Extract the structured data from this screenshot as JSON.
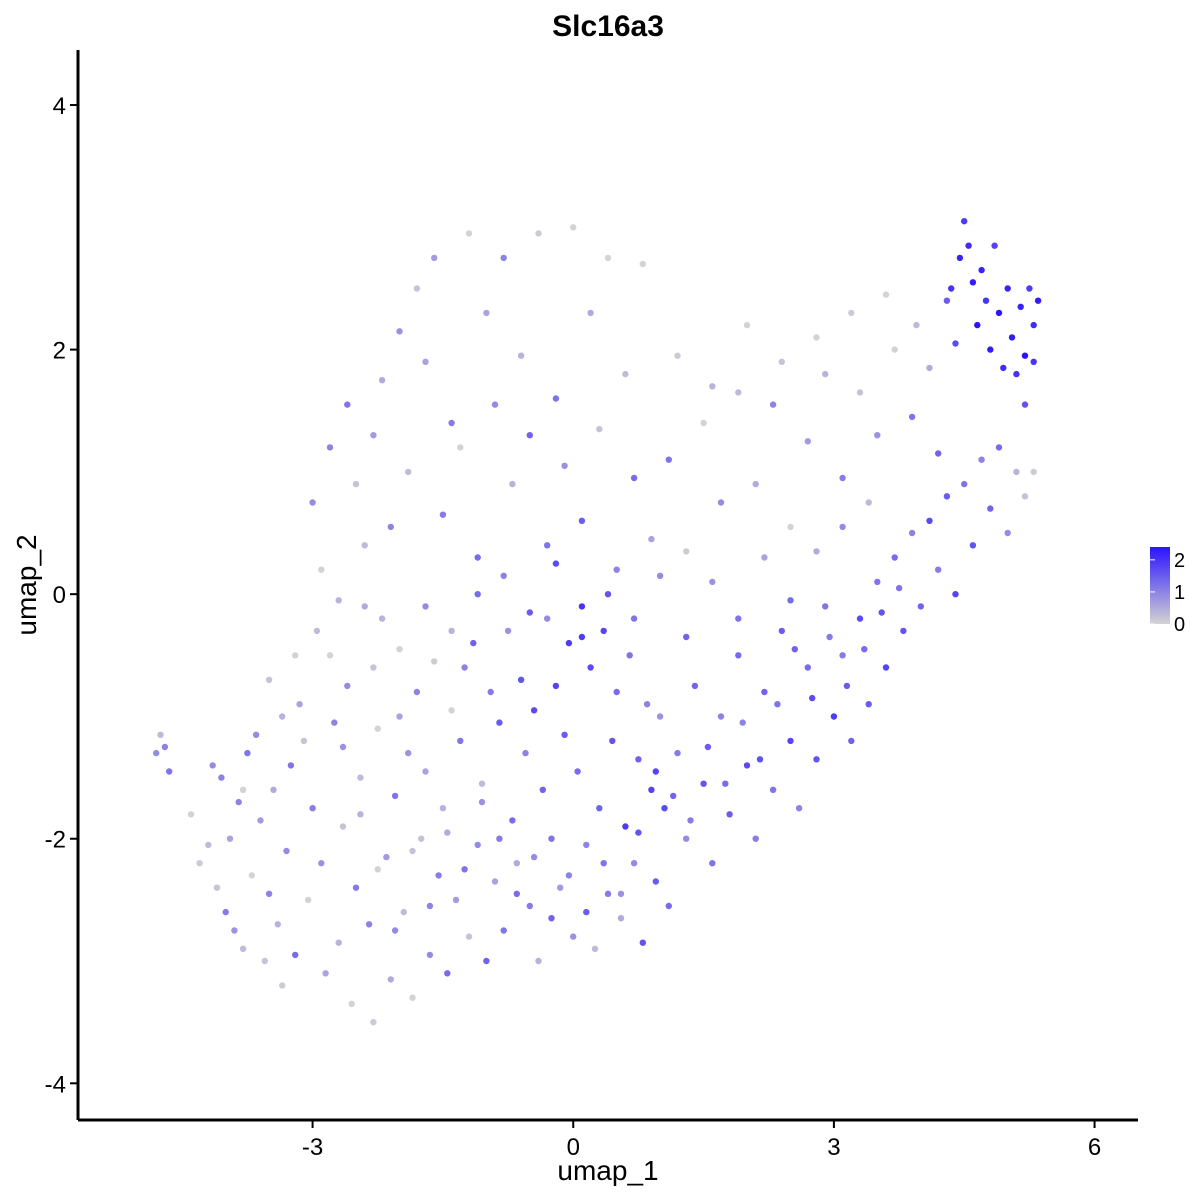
{
  "chart_data": {
    "type": "scatter",
    "title": "Slc16a3",
    "xlabel": "umap_1",
    "ylabel": "umap_2",
    "xlim": [
      -5.7,
      6.5
    ],
    "ylim": [
      -4.3,
      4.45
    ],
    "xticks": [
      -3,
      0,
      3,
      6
    ],
    "yticks": [
      -4,
      -2,
      0,
      2,
      4
    ],
    "xtick_labels": [
      "-3",
      "0",
      "3",
      "6"
    ],
    "ytick_labels": [
      "-4",
      "-2",
      "0",
      "2",
      "4"
    ],
    "grid": false,
    "legend": {
      "placement": "right",
      "type": "colorbar",
      "ticks": [
        0,
        1,
        2
      ],
      "tick_labels": [
        "0",
        "1",
        "2"
      ],
      "range": [
        0,
        2.4
      ]
    },
    "color_scale": {
      "low": "#d3d3d3",
      "high": "#2a14ff"
    },
    "point_color": "expression",
    "points": [
      [
        -4.8,
        -1.3,
        0.9
      ],
      [
        -4.7,
        -1.25,
        1.0
      ],
      [
        -4.75,
        -1.15,
        0.3
      ],
      [
        -4.65,
        -1.45,
        1.2
      ],
      [
        -4.4,
        -1.8,
        0.0
      ],
      [
        -4.3,
        -2.2,
        0.1
      ],
      [
        -4.2,
        -2.05,
        0.3
      ],
      [
        -4.15,
        -1.4,
        0.9
      ],
      [
        -4.05,
        -1.5,
        1.0
      ],
      [
        -4.0,
        -2.6,
        1.1
      ],
      [
        -3.9,
        -2.75,
        0.8
      ],
      [
        -3.85,
        -1.7,
        1.0
      ],
      [
        -3.8,
        -2.9,
        0.3
      ],
      [
        -3.75,
        -1.3,
        1.2
      ],
      [
        -3.7,
        -2.3,
        0.0
      ],
      [
        -3.6,
        -1.85,
        0.7
      ],
      [
        -3.55,
        -3.0,
        0.2
      ],
      [
        -3.5,
        -2.45,
        1.0
      ],
      [
        -3.45,
        -1.6,
        0.5
      ],
      [
        -3.4,
        -2.7,
        0.4
      ],
      [
        -3.35,
        -3.2,
        0.1
      ],
      [
        -3.3,
        -2.1,
        0.9
      ],
      [
        -3.25,
        -1.4,
        1.2
      ],
      [
        -3.2,
        -2.95,
        1.3
      ],
      [
        -3.15,
        -0.9,
        0.6
      ],
      [
        -3.1,
        -1.2,
        0.2
      ],
      [
        -3.05,
        -2.5,
        0.0
      ],
      [
        -3.0,
        -1.75,
        1.1
      ],
      [
        -2.95,
        -0.3,
        0.3
      ],
      [
        -2.9,
        -2.2,
        0.8
      ],
      [
        -2.85,
        -3.1,
        0.6
      ],
      [
        -2.8,
        -0.5,
        0.0
      ],
      [
        -2.75,
        -1.05,
        1.0
      ],
      [
        -2.7,
        -2.85,
        0.4
      ],
      [
        -2.65,
        -1.9,
        0.2
      ],
      [
        -2.6,
        -0.75,
        0.9
      ],
      [
        -2.55,
        -3.35,
        0.0
      ],
      [
        -2.5,
        -2.4,
        1.1
      ],
      [
        -2.45,
        -1.5,
        0.3
      ],
      [
        -2.4,
        -0.1,
        0.5
      ],
      [
        -2.35,
        -2.7,
        1.0
      ],
      [
        -2.3,
        -3.5,
        0.1
      ],
      [
        -2.25,
        -1.1,
        0.0
      ],
      [
        -2.2,
        -0.2,
        0.4
      ],
      [
        -2.15,
        -2.15,
        0.7
      ],
      [
        -2.1,
        -3.15,
        0.5
      ],
      [
        -2.05,
        -1.65,
        1.2
      ],
      [
        -2.0,
        -0.45,
        0.0
      ],
      [
        -1.95,
        -2.6,
        0.3
      ],
      [
        -1.9,
        -1.3,
        0.8
      ],
      [
        -1.85,
        -3.3,
        0.0
      ],
      [
        -1.8,
        -0.8,
        1.0
      ],
      [
        -1.75,
        -2.0,
        0.2
      ],
      [
        -1.7,
        -1.45,
        0.6
      ],
      [
        -1.65,
        -2.95,
        0.9
      ],
      [
        -1.6,
        -0.55,
        0.1
      ],
      [
        -1.55,
        -2.3,
        1.1
      ],
      [
        -1.5,
        -1.75,
        0.4
      ],
      [
        -1.45,
        -3.1,
        1.3
      ],
      [
        -1.4,
        -0.95,
        0.0
      ],
      [
        -1.35,
        -2.5,
        0.7
      ],
      [
        -1.3,
        -1.2,
        1.2
      ],
      [
        -1.25,
        -0.6,
        1.0
      ],
      [
        -1.2,
        -2.8,
        0.2
      ],
      [
        -1.15,
        -0.4,
        1.4
      ],
      [
        -1.1,
        -2.05,
        0.9
      ],
      [
        -1.05,
        -1.55,
        0.3
      ],
      [
        -1.0,
        -3.0,
        1.4
      ],
      [
        -0.95,
        -0.8,
        1.1
      ],
      [
        -0.9,
        -2.35,
        0.6
      ],
      [
        -0.85,
        -1.05,
        1.5
      ],
      [
        -0.8,
        -2.75,
        1.2
      ],
      [
        -0.75,
        -0.3,
        0.8
      ],
      [
        -0.7,
        -1.85,
        1.3
      ],
      [
        -0.65,
        -2.2,
        0.5
      ],
      [
        -0.6,
        -0.7,
        1.6
      ],
      [
        -0.55,
        -1.3,
        1.0
      ],
      [
        -0.5,
        -2.55,
        1.1
      ],
      [
        -0.45,
        -0.95,
        1.7
      ],
      [
        -0.4,
        -3.0,
        0.4
      ],
      [
        -0.35,
        -1.6,
        1.4
      ],
      [
        -0.3,
        -0.2,
        0.9
      ],
      [
        -0.25,
        -2.0,
        1.2
      ],
      [
        -0.2,
        -0.75,
        1.8
      ],
      [
        -0.15,
        -2.4,
        0.7
      ],
      [
        -0.1,
        -1.15,
        1.5
      ],
      [
        -0.05,
        -0.4,
        1.9
      ],
      [
        0.0,
        -2.8,
        0.8
      ],
      [
        0.05,
        -1.45,
        1.3
      ],
      [
        0.1,
        -0.1,
        2.0
      ],
      [
        0.15,
        -2.05,
        1.0
      ],
      [
        0.2,
        -0.6,
        1.7
      ],
      [
        0.25,
        -2.9,
        0.3
      ],
      [
        0.3,
        -1.75,
        1.4
      ],
      [
        0.35,
        -0.3,
        1.8
      ],
      [
        0.4,
        -2.45,
        1.1
      ],
      [
        0.45,
        -1.2,
        1.6
      ],
      [
        0.5,
        -0.8,
        1.3
      ],
      [
        0.55,
        -2.65,
        0.5
      ],
      [
        0.6,
        -1.9,
        1.9
      ],
      [
        0.65,
        -0.5,
        1.2
      ],
      [
        0.7,
        -2.2,
        0.9
      ],
      [
        0.75,
        -1.35,
        1.4
      ],
      [
        0.8,
        -2.85,
        1.6
      ],
      [
        0.85,
        -0.9,
        1.0
      ],
      [
        0.9,
        -1.6,
        1.8
      ],
      [
        0.95,
        -2.35,
        1.5
      ],
      [
        1.0,
        -1.0,
        0.8
      ],
      [
        1.05,
        -1.75,
        1.7
      ],
      [
        1.1,
        -2.55,
        1.3
      ],
      [
        1.2,
        -1.3,
        1.1
      ],
      [
        1.3,
        -2.0,
        0.9
      ],
      [
        1.4,
        -0.75,
        1.4
      ],
      [
        1.5,
        -1.55,
        1.6
      ],
      [
        1.6,
        -2.2,
        1.2
      ],
      [
        1.7,
        -1.0,
        1.0
      ],
      [
        1.8,
        -1.8,
        1.5
      ],
      [
        1.9,
        -0.5,
        1.3
      ],
      [
        2.0,
        -1.4,
        1.7
      ],
      [
        2.1,
        -2.0,
        1.1
      ],
      [
        2.2,
        -0.8,
        1.4
      ],
      [
        2.3,
        -1.6,
        1.2
      ],
      [
        2.4,
        -0.3,
        1.5
      ],
      [
        2.5,
        -1.2,
        1.8
      ],
      [
        2.6,
        -1.75,
        1.0
      ],
      [
        2.7,
        -0.6,
        1.3
      ],
      [
        2.8,
        -1.35,
        1.6
      ],
      [
        2.9,
        -0.1,
        1.2
      ],
      [
        3.0,
        -1.0,
        1.9
      ],
      [
        3.1,
        -0.5,
        1.1
      ],
      [
        3.2,
        -1.2,
        1.4
      ],
      [
        3.3,
        -0.2,
        1.7
      ],
      [
        3.4,
        -0.9,
        1.5
      ],
      [
        3.5,
        0.1,
        1.2
      ],
      [
        3.6,
        -0.6,
        1.8
      ],
      [
        3.7,
        0.3,
        1.3
      ],
      [
        3.8,
        -0.3,
        1.6
      ],
      [
        3.9,
        0.5,
        1.0
      ],
      [
        4.0,
        -0.1,
        1.4
      ],
      [
        4.1,
        0.6,
        1.7
      ],
      [
        4.2,
        0.2,
        1.1
      ],
      [
        4.3,
        0.8,
        1.5
      ],
      [
        4.4,
        0.0,
        1.8
      ],
      [
        4.5,
        0.9,
        1.2
      ],
      [
        4.6,
        0.4,
        1.6
      ],
      [
        4.7,
        1.1,
        1.0
      ],
      [
        4.8,
        0.7,
        1.4
      ],
      [
        4.9,
        1.2,
        1.3
      ],
      [
        5.0,
        0.5,
        0.9
      ],
      [
        5.1,
        1.0,
        0.4
      ],
      [
        5.2,
        0.8,
        0.2
      ],
      [
        5.3,
        1.0,
        0.1
      ],
      [
        4.35,
        2.5,
        2.0
      ],
      [
        4.45,
        2.75,
        2.2
      ],
      [
        4.5,
        3.05,
        1.9
      ],
      [
        4.55,
        2.85,
        2.1
      ],
      [
        4.6,
        2.55,
        2.3
      ],
      [
        4.65,
        2.2,
        2.4
      ],
      [
        4.7,
        2.65,
        2.2
      ],
      [
        4.75,
        2.4,
        2.0
      ],
      [
        4.8,
        2.0,
        2.3
      ],
      [
        4.85,
        2.85,
        1.8
      ],
      [
        4.9,
        2.3,
        2.4
      ],
      [
        4.95,
        1.85,
        2.1
      ],
      [
        5.0,
        2.5,
        2.2
      ],
      [
        5.05,
        2.1,
        2.3
      ],
      [
        5.1,
        1.8,
        2.0
      ],
      [
        5.15,
        2.35,
        2.2
      ],
      [
        5.2,
        1.95,
        2.4
      ],
      [
        5.25,
        2.5,
        1.9
      ],
      [
        5.3,
        2.2,
        2.1
      ],
      [
        5.35,
        2.4,
        2.3
      ],
      [
        5.3,
        1.9,
        2.0
      ],
      [
        5.2,
        1.55,
        1.6
      ],
      [
        4.4,
        2.05,
        1.7
      ],
      [
        4.3,
        2.4,
        1.5
      ],
      [
        -3.0,
        0.75,
        0.9
      ],
      [
        -2.8,
        1.2,
        1.0
      ],
      [
        -2.6,
        1.55,
        1.2
      ],
      [
        -2.4,
        0.4,
        0.3
      ],
      [
        -2.2,
        1.75,
        0.5
      ],
      [
        -2.0,
        2.15,
        0.8
      ],
      [
        -1.8,
        2.5,
        0.2
      ],
      [
        -1.6,
        2.75,
        0.7
      ],
      [
        -1.4,
        1.4,
        1.1
      ],
      [
        -1.2,
        2.95,
        0.0
      ],
      [
        -1.0,
        2.3,
        0.6
      ],
      [
        -0.8,
        2.75,
        1.0
      ],
      [
        -0.6,
        1.95,
        0.4
      ],
      [
        -0.4,
        2.95,
        0.1
      ],
      [
        -0.2,
        1.6,
        1.2
      ],
      [
        0.0,
        3.0,
        0.0
      ],
      [
        0.2,
        2.3,
        0.5
      ],
      [
        0.4,
        2.75,
        0.0
      ],
      [
        0.6,
        1.8,
        0.3
      ],
      [
        0.8,
        2.7,
        0.0
      ],
      [
        -2.9,
        0.2,
        0.0
      ],
      [
        -2.7,
        -0.05,
        0.4
      ],
      [
        -2.5,
        0.9,
        0.2
      ],
      [
        -2.3,
        1.3,
        0.7
      ],
      [
        -2.1,
        0.55,
        1.0
      ],
      [
        -1.9,
        1.0,
        0.3
      ],
      [
        -1.7,
        1.9,
        0.6
      ],
      [
        -1.5,
        0.65,
        1.1
      ],
      [
        -1.3,
        1.2,
        0.0
      ],
      [
        -1.1,
        0.3,
        1.3
      ],
      [
        -0.9,
        1.55,
        0.9
      ],
      [
        -0.7,
        0.9,
        0.4
      ],
      [
        -0.5,
        1.3,
        1.4
      ],
      [
        -0.3,
        0.4,
        1.2
      ],
      [
        -0.1,
        1.05,
        0.8
      ],
      [
        0.1,
        0.6,
        1.5
      ],
      [
        0.3,
        1.35,
        0.2
      ],
      [
        0.5,
        0.2,
        1.0
      ],
      [
        0.7,
        0.95,
        1.3
      ],
      [
        0.9,
        0.45,
        0.6
      ],
      [
        1.1,
        1.1,
        1.2
      ],
      [
        1.3,
        0.35,
        0.1
      ],
      [
        1.5,
        1.4,
        0.0
      ],
      [
        1.7,
        0.75,
        0.9
      ],
      [
        1.9,
        1.65,
        0.3
      ],
      [
        2.1,
        0.9,
        0.5
      ],
      [
        2.3,
        1.55,
        1.0
      ],
      [
        2.5,
        0.55,
        0.0
      ],
      [
        2.7,
        1.25,
        0.7
      ],
      [
        2.9,
        1.8,
        0.4
      ],
      [
        3.1,
        0.95,
        1.1
      ],
      [
        3.3,
        1.65,
        0.2
      ],
      [
        3.5,
        1.3,
        0.8
      ],
      [
        3.7,
        2.0,
        0.0
      ],
      [
        3.9,
        1.45,
        1.2
      ],
      [
        4.1,
        1.85,
        0.5
      ],
      [
        4.2,
        1.15,
        1.4
      ],
      [
        3.95,
        2.2,
        0.3
      ],
      [
        3.6,
        2.45,
        0.0
      ],
      [
        3.2,
        2.3,
        0.1
      ],
      [
        2.8,
        2.1,
        0.0
      ],
      [
        2.4,
        1.9,
        0.2
      ],
      [
        2.0,
        2.2,
        0.0
      ],
      [
        1.6,
        1.7,
        0.4
      ],
      [
        1.2,
        1.95,
        0.1
      ],
      [
        -2.3,
        -0.6,
        0.2
      ],
      [
        -2.0,
        -1.0,
        0.6
      ],
      [
        -1.7,
        -0.1,
        0.9
      ],
      [
        -1.4,
        -0.3,
        0.4
      ],
      [
        -1.1,
        0.0,
        1.3
      ],
      [
        -0.8,
        0.15,
        1.0
      ],
      [
        -0.5,
        -0.15,
        1.5
      ],
      [
        -0.2,
        0.25,
        1.7
      ],
      [
        0.1,
        -0.35,
        1.9
      ],
      [
        0.4,
        0.0,
        1.6
      ],
      [
        0.7,
        -0.2,
        1.2
      ],
      [
        1.0,
        0.15,
        0.9
      ],
      [
        1.3,
        -0.35,
        1.4
      ],
      [
        1.6,
        0.1,
        0.8
      ],
      [
        1.9,
        -0.2,
        1.2
      ],
      [
        2.2,
        0.3,
        0.6
      ],
      [
        2.5,
        -0.05,
        1.3
      ],
      [
        2.8,
        0.35,
        0.5
      ],
      [
        3.1,
        0.55,
        0.9
      ],
      [
        3.4,
        0.75,
        0.3
      ],
      [
        -3.2,
        -0.5,
        0.0
      ],
      [
        -3.35,
        -1.0,
        0.4
      ],
      [
        -3.5,
        -0.7,
        0.2
      ],
      [
        -3.65,
        -1.15,
        0.9
      ],
      [
        -3.8,
        -1.6,
        0.0
      ],
      [
        -3.95,
        -2.0,
        0.6
      ],
      [
        -4.1,
        -2.4,
        0.2
      ],
      [
        -2.65,
        -1.25,
        0.8
      ],
      [
        -2.45,
        -1.8,
        0.4
      ],
      [
        -2.25,
        -2.25,
        0.0
      ],
      [
        -2.05,
        -2.75,
        0.9
      ],
      [
        -1.85,
        -2.1,
        0.2
      ],
      [
        -1.65,
        -2.55,
        1.0
      ],
      [
        -1.45,
        -1.95,
        0.5
      ],
      [
        -1.25,
        -2.25,
        1.2
      ],
      [
        -1.05,
        -1.7,
        0.8
      ],
      [
        -0.85,
        -2.0,
        1.1
      ],
      [
        -0.65,
        -2.45,
        1.3
      ],
      [
        -0.45,
        -2.15,
        0.9
      ],
      [
        -0.25,
        -2.65,
        1.4
      ],
      [
        -0.05,
        -2.3,
        1.0
      ],
      [
        0.15,
        -2.6,
        1.5
      ],
      [
        0.35,
        -2.2,
        1.2
      ],
      [
        0.55,
        -2.45,
        0.8
      ],
      [
        0.75,
        -1.95,
        1.6
      ],
      [
        0.95,
        -1.45,
        1.8
      ],
      [
        1.15,
        -1.65,
        1.4
      ],
      [
        1.35,
        -1.85,
        1.1
      ],
      [
        1.55,
        -1.25,
        1.5
      ],
      [
        1.75,
        -1.55,
        1.3
      ],
      [
        1.95,
        -1.05,
        1.0
      ],
      [
        2.15,
        -1.35,
        1.6
      ],
      [
        2.35,
        -0.9,
        1.2
      ],
      [
        2.55,
        -0.45,
        1.4
      ],
      [
        2.75,
        -0.85,
        1.7
      ],
      [
        2.95,
        -0.35,
        1.1
      ],
      [
        3.15,
        -0.75,
        1.5
      ],
      [
        3.35,
        -0.45,
        1.3
      ],
      [
        3.55,
        -0.15,
        1.6
      ],
      [
        3.75,
        0.05,
        1.2
      ]
    ]
  }
}
